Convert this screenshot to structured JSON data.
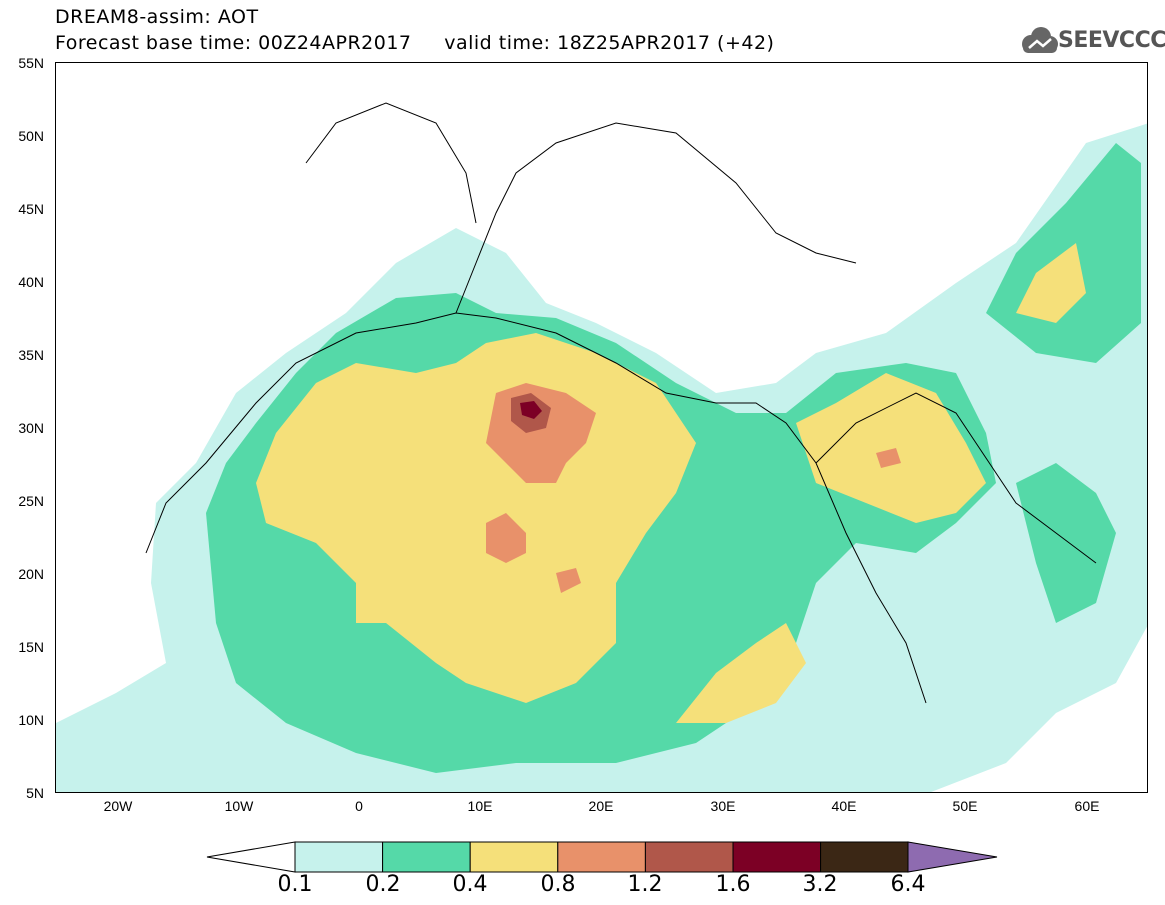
{
  "header": {
    "title": "DREAM8-assim: AOT",
    "subtitle": "Forecast base time: 00Z24APR2017     valid time: 18Z25APR2017 (+42)",
    "logo_text": "SEEVCCC"
  },
  "map": {
    "extent": {
      "lon": [
        -25,
        65
      ],
      "lat": [
        5,
        55
      ]
    },
    "lat_labels": [
      "55N",
      "50N",
      "45N",
      "40N",
      "35N",
      "30N",
      "25N",
      "20N",
      "15N",
      "10N",
      "5N"
    ],
    "lon_labels": [
      "20W",
      "10W",
      "0",
      "10E",
      "20E",
      "30E",
      "40E",
      "50E",
      "60E"
    ]
  },
  "colorbar": {
    "levels": [
      "0.1",
      "0.2",
      "0.4",
      "0.8",
      "1.2",
      "1.6",
      "3.2",
      "6.4"
    ],
    "colors": [
      "#ffffff",
      "#c6f2ec",
      "#55d9a8",
      "#f5e07a",
      "#e8916a",
      "#b0574a",
      "#7c0025",
      "#3b2715",
      "#8e6bb0"
    ]
  },
  "palette": {
    "light": "#c6f2ec",
    "green": "#55d9a8",
    "yellow": "#f5e07a",
    "orange": "#e8916a",
    "brown": "#b0574a",
    "darkred": "#7c0025"
  }
}
